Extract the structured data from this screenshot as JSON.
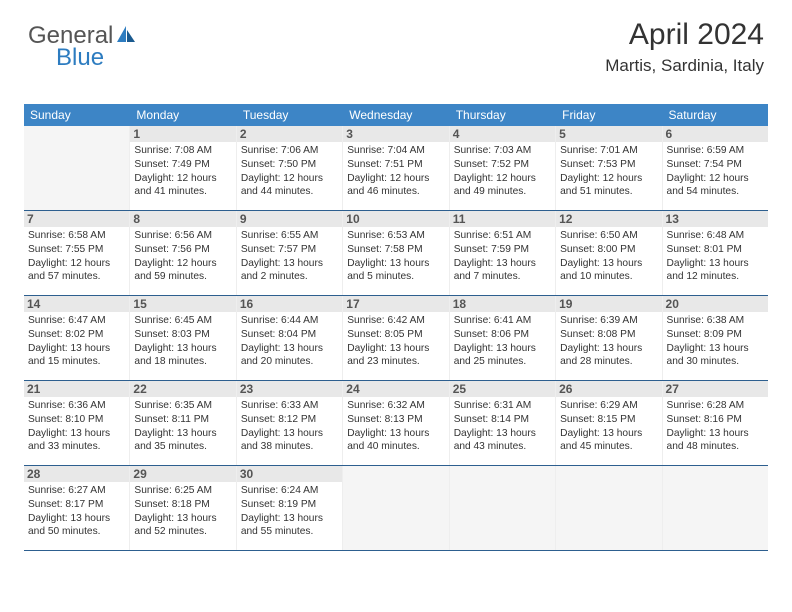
{
  "logo": {
    "text1": "General",
    "text2": "Blue"
  },
  "header": {
    "title": "April 2024",
    "subtitle": "Martis, Sardinia, Italy"
  },
  "colors": {
    "header_bg": "#3d85c6",
    "header_text": "#ffffff",
    "week_border": "#2d5f8f",
    "daynum_bg": "#e8e8e8",
    "empty_bg": "#f5f5f5",
    "logo_gray": "#555555",
    "logo_blue": "#2d7cc0"
  },
  "dayHeaders": [
    "Sunday",
    "Monday",
    "Tuesday",
    "Wednesday",
    "Thursday",
    "Friday",
    "Saturday"
  ],
  "weeks": [
    [
      {
        "empty": true
      },
      {
        "num": "1",
        "sunrise": "7:08 AM",
        "sunset": "7:49 PM",
        "daylight": "12 hours and 41 minutes."
      },
      {
        "num": "2",
        "sunrise": "7:06 AM",
        "sunset": "7:50 PM",
        "daylight": "12 hours and 44 minutes."
      },
      {
        "num": "3",
        "sunrise": "7:04 AM",
        "sunset": "7:51 PM",
        "daylight": "12 hours and 46 minutes."
      },
      {
        "num": "4",
        "sunrise": "7:03 AM",
        "sunset": "7:52 PM",
        "daylight": "12 hours and 49 minutes."
      },
      {
        "num": "5",
        "sunrise": "7:01 AM",
        "sunset": "7:53 PM",
        "daylight": "12 hours and 51 minutes."
      },
      {
        "num": "6",
        "sunrise": "6:59 AM",
        "sunset": "7:54 PM",
        "daylight": "12 hours and 54 minutes."
      }
    ],
    [
      {
        "num": "7",
        "sunrise": "6:58 AM",
        "sunset": "7:55 PM",
        "daylight": "12 hours and 57 minutes."
      },
      {
        "num": "8",
        "sunrise": "6:56 AM",
        "sunset": "7:56 PM",
        "daylight": "12 hours and 59 minutes."
      },
      {
        "num": "9",
        "sunrise": "6:55 AM",
        "sunset": "7:57 PM",
        "daylight": "13 hours and 2 minutes."
      },
      {
        "num": "10",
        "sunrise": "6:53 AM",
        "sunset": "7:58 PM",
        "daylight": "13 hours and 5 minutes."
      },
      {
        "num": "11",
        "sunrise": "6:51 AM",
        "sunset": "7:59 PM",
        "daylight": "13 hours and 7 minutes."
      },
      {
        "num": "12",
        "sunrise": "6:50 AM",
        "sunset": "8:00 PM",
        "daylight": "13 hours and 10 minutes."
      },
      {
        "num": "13",
        "sunrise": "6:48 AM",
        "sunset": "8:01 PM",
        "daylight": "13 hours and 12 minutes."
      }
    ],
    [
      {
        "num": "14",
        "sunrise": "6:47 AM",
        "sunset": "8:02 PM",
        "daylight": "13 hours and 15 minutes."
      },
      {
        "num": "15",
        "sunrise": "6:45 AM",
        "sunset": "8:03 PM",
        "daylight": "13 hours and 18 minutes."
      },
      {
        "num": "16",
        "sunrise": "6:44 AM",
        "sunset": "8:04 PM",
        "daylight": "13 hours and 20 minutes."
      },
      {
        "num": "17",
        "sunrise": "6:42 AM",
        "sunset": "8:05 PM",
        "daylight": "13 hours and 23 minutes."
      },
      {
        "num": "18",
        "sunrise": "6:41 AM",
        "sunset": "8:06 PM",
        "daylight": "13 hours and 25 minutes."
      },
      {
        "num": "19",
        "sunrise": "6:39 AM",
        "sunset": "8:08 PM",
        "daylight": "13 hours and 28 minutes."
      },
      {
        "num": "20",
        "sunrise": "6:38 AM",
        "sunset": "8:09 PM",
        "daylight": "13 hours and 30 minutes."
      }
    ],
    [
      {
        "num": "21",
        "sunrise": "6:36 AM",
        "sunset": "8:10 PM",
        "daylight": "13 hours and 33 minutes."
      },
      {
        "num": "22",
        "sunrise": "6:35 AM",
        "sunset": "8:11 PM",
        "daylight": "13 hours and 35 minutes."
      },
      {
        "num": "23",
        "sunrise": "6:33 AM",
        "sunset": "8:12 PM",
        "daylight": "13 hours and 38 minutes."
      },
      {
        "num": "24",
        "sunrise": "6:32 AM",
        "sunset": "8:13 PM",
        "daylight": "13 hours and 40 minutes."
      },
      {
        "num": "25",
        "sunrise": "6:31 AM",
        "sunset": "8:14 PM",
        "daylight": "13 hours and 43 minutes."
      },
      {
        "num": "26",
        "sunrise": "6:29 AM",
        "sunset": "8:15 PM",
        "daylight": "13 hours and 45 minutes."
      },
      {
        "num": "27",
        "sunrise": "6:28 AM",
        "sunset": "8:16 PM",
        "daylight": "13 hours and 48 minutes."
      }
    ],
    [
      {
        "num": "28",
        "sunrise": "6:27 AM",
        "sunset": "8:17 PM",
        "daylight": "13 hours and 50 minutes."
      },
      {
        "num": "29",
        "sunrise": "6:25 AM",
        "sunset": "8:18 PM",
        "daylight": "13 hours and 52 minutes."
      },
      {
        "num": "30",
        "sunrise": "6:24 AM",
        "sunset": "8:19 PM",
        "daylight": "13 hours and 55 minutes."
      },
      {
        "empty": true
      },
      {
        "empty": true
      },
      {
        "empty": true
      },
      {
        "empty": true
      }
    ]
  ],
  "labels": {
    "sunrise": "Sunrise: ",
    "sunset": "Sunset: ",
    "daylight": "Daylight: "
  }
}
